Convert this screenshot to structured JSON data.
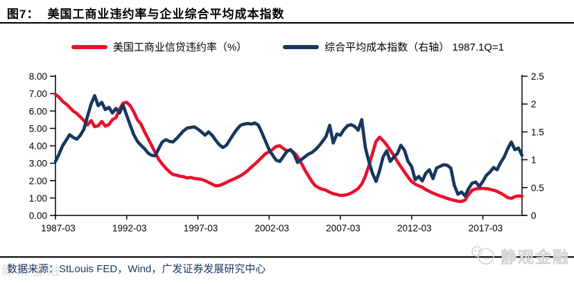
{
  "figure_label": "图7：",
  "title": "美国工商业违约率与企业综合平均成本指数",
  "legend": {
    "items": [
      {
        "label": "美国工商业信贷违约率（%）",
        "color": "#e8112d"
      },
      {
        "label": "综合平均成本指数（右轴） 1987.1Q=1",
        "color": "#17375e"
      }
    ]
  },
  "source": {
    "text": "数据来源：StLouis FED，Wind，广发证券发展研究中心"
  },
  "watermark": {
    "text": "静观金融"
  },
  "colors": {
    "series_red": "#e8112d",
    "series_navy": "#17375e",
    "axis": "#000000",
    "source_text": "#1f3864",
    "watermark_gray": "#d6d6d6"
  },
  "chart_data": {
    "type": "line",
    "title": "美国工商业违约率与企业综合平均成本指数",
    "grid": false,
    "legend_position": "top",
    "x_start_year": 1987.25,
    "x_step": 0.25,
    "x_tick_labels": [
      "1987-03",
      "1992-03",
      "1997-03",
      "2002-03",
      "2007-03",
      "2012-03",
      "2017-03"
    ],
    "left_axis": {
      "min": 0,
      "max": 8,
      "tick_labels": [
        "8.00",
        "7.00",
        "6.00",
        "5.00",
        "4.00",
        "3.00",
        "2.00",
        "1.00",
        "0.00"
      ]
    },
    "right_axis": {
      "min": 0,
      "max": 2.5,
      "tick_labels": [
        "2.5",
        "2",
        "1.5",
        "1",
        "0.5",
        "0"
      ]
    },
    "series": [
      {
        "name": "美国工商业信贷违约率（%）",
        "axis": "left",
        "color": "#e8112d",
        "values": [
          6.95,
          6.8,
          6.55,
          6.4,
          6.2,
          6.0,
          5.85,
          5.65,
          5.45,
          5.2,
          5.45,
          5.1,
          5.15,
          5.4,
          5.13,
          5.22,
          5.5,
          5.62,
          6.1,
          6.45,
          6.5,
          6.3,
          5.95,
          5.5,
          5.25,
          4.81,
          4.42,
          4.02,
          3.62,
          3.22,
          2.95,
          2.71,
          2.51,
          2.35,
          2.31,
          2.25,
          2.23,
          2.15,
          2.18,
          2.12,
          2.1,
          2.07,
          2.0,
          1.9,
          1.8,
          1.7,
          1.72,
          1.8,
          1.9,
          2.0,
          2.08,
          2.18,
          2.28,
          2.42,
          2.58,
          2.78,
          2.95,
          3.15,
          3.35,
          3.55,
          3.65,
          3.8,
          3.97,
          4.0,
          3.85,
          3.7,
          3.76,
          3.6,
          3.38,
          3.02,
          2.62,
          2.28,
          1.95,
          1.7,
          1.58,
          1.5,
          1.45,
          1.33,
          1.25,
          1.2,
          1.15,
          1.16,
          1.2,
          1.28,
          1.4,
          1.55,
          1.8,
          2.25,
          2.85,
          3.55,
          4.25,
          4.5,
          4.3,
          4.05,
          3.75,
          3.45,
          3.1,
          2.8,
          2.5,
          2.2,
          1.95,
          1.8,
          1.7,
          1.62,
          1.48,
          1.38,
          1.28,
          1.2,
          1.12,
          1.05,
          0.98,
          0.92,
          0.86,
          0.82,
          0.8,
          0.88,
          1.2,
          1.45,
          1.52,
          1.55,
          1.55,
          1.54,
          1.5,
          1.45,
          1.38,
          1.28,
          1.16,
          1.02,
          0.98,
          1.08,
          1.12,
          1.1
        ]
      },
      {
        "name": "综合平均成本指数（右轴） 1987.1Q=1",
        "axis": "right",
        "color": "#17375e",
        "values": [
          0.97,
          1.1,
          1.25,
          1.35,
          1.45,
          1.4,
          1.37,
          1.44,
          1.55,
          1.78,
          2.0,
          2.15,
          1.97,
          2.03,
          1.9,
          1.94,
          1.84,
          1.92,
          1.84,
          1.98,
          1.8,
          1.62,
          1.45,
          1.33,
          1.26,
          1.2,
          1.12,
          1.08,
          1.07,
          1.2,
          1.32,
          1.36,
          1.33,
          1.32,
          1.38,
          1.45,
          1.52,
          1.57,
          1.58,
          1.59,
          1.55,
          1.5,
          1.44,
          1.5,
          1.44,
          1.35,
          1.27,
          1.22,
          1.26,
          1.36,
          1.46,
          1.55,
          1.62,
          1.64,
          1.65,
          1.64,
          1.66,
          1.62,
          1.48,
          1.33,
          1.18,
          1.08,
          0.99,
          0.97,
          1.06,
          1.15,
          1.18,
          1.1,
          0.95,
          1.0,
          1.05,
          1.1,
          1.13,
          1.18,
          1.25,
          1.33,
          1.42,
          1.62,
          1.3,
          1.46,
          1.44,
          1.54,
          1.61,
          1.63,
          1.6,
          1.53,
          1.72,
          1.22,
          0.97,
          0.76,
          0.61,
          0.8,
          1.05,
          1.16,
          0.97,
          1.05,
          1.11,
          1.26,
          1.17,
          0.97,
          0.88,
          0.64,
          0.7,
          0.62,
          0.76,
          0.82,
          0.66,
          0.85,
          0.88,
          0.91,
          0.9,
          0.85,
          0.54,
          0.38,
          0.42,
          0.35,
          0.48,
          0.58,
          0.6,
          0.52,
          0.61,
          0.72,
          0.78,
          0.86,
          0.82,
          0.95,
          1.05,
          1.2,
          1.32,
          1.18,
          1.21,
          1.08
        ]
      }
    ]
  }
}
